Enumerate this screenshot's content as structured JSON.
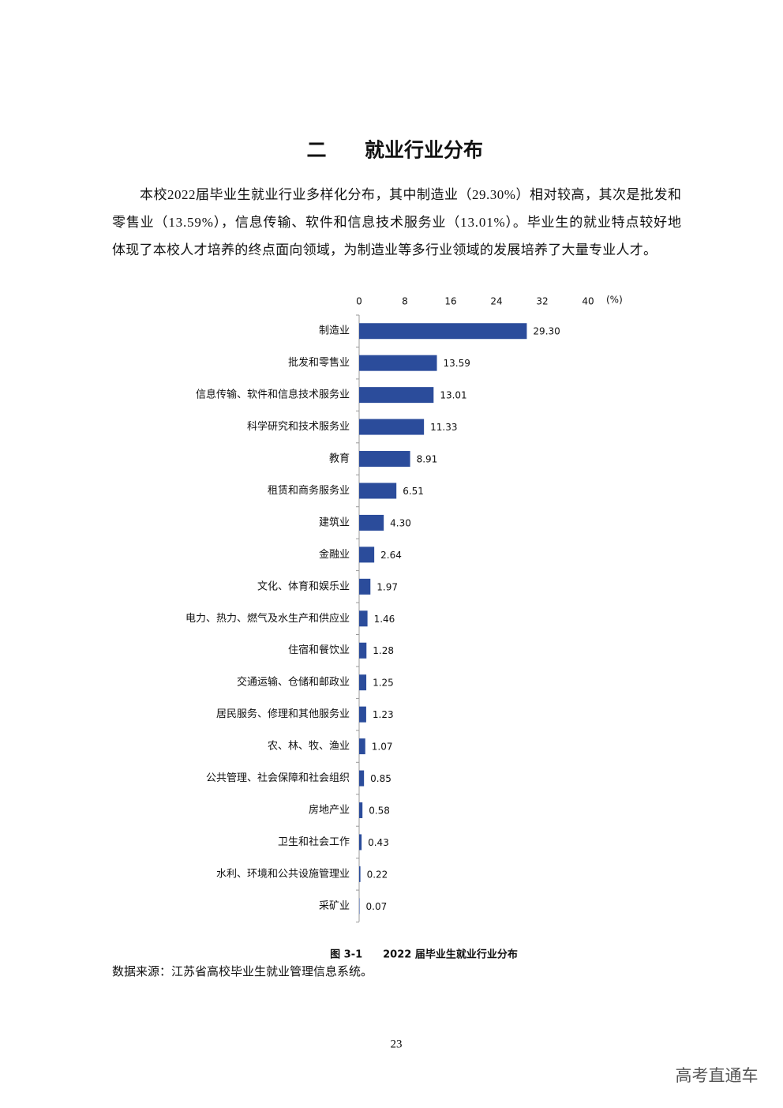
{
  "heading": {
    "number": "二",
    "title": "就业行业分布"
  },
  "paragraph": [
    "本校2022届毕业生就业行业多样化分布，其中制造业（29.30%）相对较高，其次是批发和",
    "零售业（13.59%），信息传输、软件和信息技术服务业（13.01%）。毕业生的就业特点较好地",
    "体现了本校人才培养的终点面向领域，为制造业等多行业领域的发展培养了大量专业人才。"
  ],
  "chart_data": {
    "type": "bar",
    "orientation": "horizontal",
    "x_unit": "(%)",
    "categories": [
      "制造业",
      "批发和零售业",
      "信息传输、软件和信息技术服务业",
      "科学研究和技术服务业",
      "教育",
      "租赁和商务服务业",
      "建筑业",
      "金融业",
      "文化、体育和娱乐业",
      "电力、热力、燃气及水生产和供应业",
      "住宿和餐饮业",
      "交通运输、仓储和邮政业",
      "居民服务、修理和其他服务业",
      "农、林、牧、渔业",
      "公共管理、社会保障和社会组织",
      "房地产业",
      "卫生和社会工作",
      "水利、环境和公共设施管理业",
      "采矿业"
    ],
    "values": [
      29.3,
      13.59,
      13.01,
      11.33,
      8.91,
      6.51,
      4.3,
      2.64,
      1.97,
      1.46,
      1.28,
      1.25,
      1.23,
      1.07,
      0.85,
      0.58,
      0.43,
      0.22,
      0.07
    ],
    "value_labels": [
      "29.30",
      "13.59",
      "13.01",
      "11.33",
      "8.91",
      "6.51",
      "4.30",
      "2.64",
      "1.97",
      "1.46",
      "1.28",
      "1.25",
      "1.23",
      "1.07",
      "0.85",
      "0.58",
      "0.43",
      "0.22",
      "0.07"
    ],
    "color": "#2b4c9b",
    "xlim": [
      0,
      40
    ],
    "xticks": [
      0,
      8,
      16,
      24,
      32,
      40
    ],
    "xaxis_position": "top"
  },
  "caption": "图 3-1　　2022 届毕业生就业行业分布",
  "source": "数据来源：江苏省高校毕业生就业管理信息系统。",
  "page_number": "23",
  "watermark": "高考直通车"
}
